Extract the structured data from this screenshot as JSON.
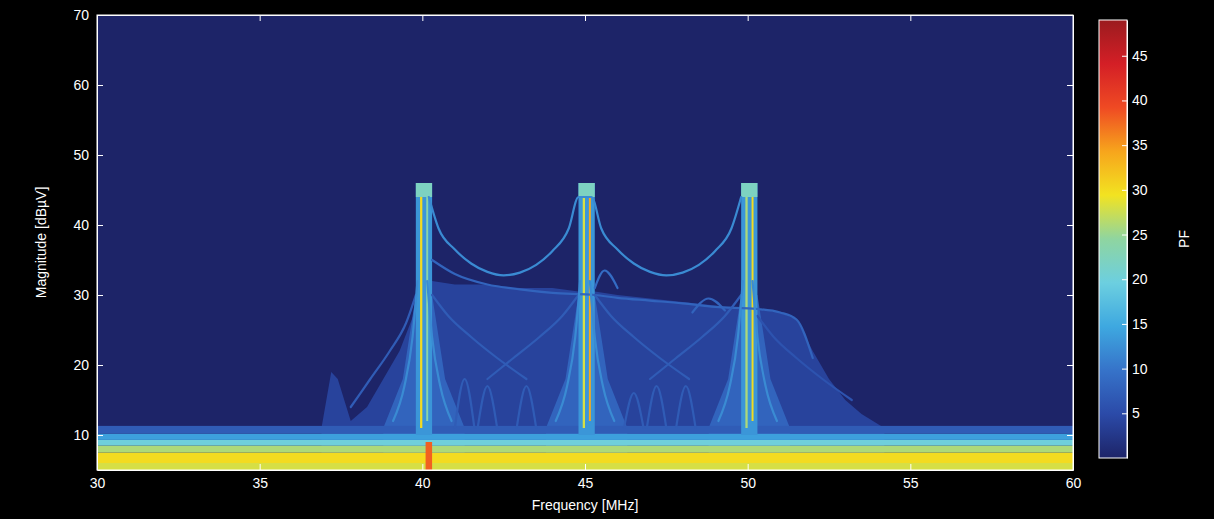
{
  "chart_data": {
    "type": "heatmap",
    "x_label": "Frequency [MHz]",
    "y_label": "Magnitude [dBµV]",
    "xlim": [
      30,
      60
    ],
    "ylim": [
      5,
      70
    ],
    "xticks": [
      30,
      35,
      40,
      45,
      50,
      55,
      60
    ],
    "yticks": [
      10,
      20,
      30,
      40,
      50,
      60,
      70
    ],
    "grid": false,
    "colorbar": {
      "label": "PF",
      "range": [
        0,
        49
      ],
      "ticks": [
        5,
        10,
        15,
        20,
        25,
        30,
        35,
        40,
        45
      ]
    },
    "areas": [
      {
        "x": [
          36.9,
          37.2,
          37.4,
          37.8,
          38.3,
          38.8,
          39.3,
          39.8,
          40.3,
          41,
          42,
          43,
          44,
          44.8,
          45.3,
          46,
          47,
          48,
          49,
          49.8,
          50.3,
          51,
          51.5,
          52,
          52.5,
          53,
          53.5,
          54.2
        ],
        "values": [
          11,
          19,
          18,
          12,
          14,
          18,
          22,
          28,
          32,
          31.5,
          31.5,
          31,
          31,
          30.5,
          30.5,
          30,
          29.5,
          29,
          28.5,
          28,
          28,
          27.5,
          26.5,
          22,
          18,
          15,
          13,
          11
        ],
        "pf": 4
      },
      {
        "x": [
          38.8,
          39.4,
          39.8,
          40.3,
          40.7,
          41.3
        ],
        "values": [
          11,
          18,
          30,
          30,
          18,
          11
        ],
        "pf": 8
      },
      {
        "x": [
          43.8,
          44.4,
          44.8,
          45.3,
          45.7,
          46.3
        ],
        "values": [
          11,
          18,
          30,
          30,
          18,
          11
        ],
        "pf": 8
      },
      {
        "x": [
          48.8,
          49.4,
          49.8,
          50.3,
          50.7,
          51.3
        ],
        "values": [
          11,
          18,
          30,
          30,
          18,
          11
        ],
        "pf": 8
      }
    ],
    "cells": [
      {
        "x": [
          30,
          60
        ],
        "y": [
          5,
          6
        ],
        "value": 28
      },
      {
        "x": [
          30,
          60
        ],
        "y": [
          6,
          7.5
        ],
        "value": 30
      },
      {
        "x": [
          30,
          60
        ],
        "y": [
          7.5,
          8.5
        ],
        "value": 26
      },
      {
        "x": [
          30,
          60
        ],
        "y": [
          8.5,
          9.3
        ],
        "value": 20
      },
      {
        "x": [
          30,
          60
        ],
        "y": [
          9.3,
          10.2
        ],
        "value": 14
      },
      {
        "x": [
          30,
          60
        ],
        "y": [
          10.2,
          11.3
        ],
        "value": 7
      },
      {
        "x": [
          39.8,
          40.3
        ],
        "y": [
          10,
          46
        ],
        "value": 13
      },
      {
        "x": [
          39.93,
          40.0
        ],
        "y": [
          11,
          45
        ],
        "value": 30
      },
      {
        "x": [
          40.12,
          40.18
        ],
        "y": [
          12,
          46
        ],
        "value": 24
      },
      {
        "x": [
          39.8,
          40.3
        ],
        "y": [
          44,
          46
        ],
        "value": 22
      },
      {
        "x": [
          40.1,
          40.3
        ],
        "y": [
          5,
          9
        ],
        "value": 38
      },
      {
        "x": [
          44.8,
          45.3
        ],
        "y": [
          10,
          46
        ],
        "value": 13
      },
      {
        "x": [
          44.93,
          45.0
        ],
        "y": [
          11,
          45
        ],
        "value": 28
      },
      {
        "x": [
          45.12,
          45.18
        ],
        "y": [
          12,
          46
        ],
        "value": 34
      },
      {
        "x": [
          44.8,
          45.3
        ],
        "y": [
          44,
          46
        ],
        "value": 22
      },
      {
        "x": [
          49.8,
          50.3
        ],
        "y": [
          10,
          46
        ],
        "value": 13
      },
      {
        "x": [
          49.93,
          50.0
        ],
        "y": [
          11,
          45
        ],
        "value": 26
      },
      {
        "x": [
          50.12,
          50.18
        ],
        "y": [
          12,
          46
        ],
        "value": 30
      },
      {
        "x": [
          49.8,
          50.3
        ],
        "y": [
          44,
          46
        ],
        "value": 22
      }
    ],
    "traces": [
      {
        "x": [
          40.2,
          40.5,
          41,
          41.5,
          42,
          42.5,
          43,
          43.5,
          44,
          44.5,
          44.8,
          45.2,
          45.5,
          46,
          46.5,
          47,
          47.5,
          48,
          48.5,
          49,
          49.5,
          49.8
        ],
        "values": [
          44,
          39.5,
          36.5,
          34.5,
          33.3,
          32.8,
          33.2,
          34.3,
          36.3,
          39.5,
          44,
          44,
          39.5,
          36.5,
          34.5,
          33.3,
          32.8,
          33.2,
          34.3,
          36.3,
          39.5,
          44
        ],
        "pf": 12
      },
      {
        "x": [
          40.3,
          41,
          42,
          43,
          44,
          45.3,
          46,
          47,
          48,
          49,
          50.3,
          51,
          51.5,
          52
        ],
        "values": [
          35,
          33,
          31.5,
          30.8,
          30.3,
          30,
          29.6,
          29.2,
          28.8,
          28.3,
          28,
          27.5,
          26.5,
          21
        ],
        "pf": 8
      },
      {
        "x": [
          37.8,
          38.4,
          39,
          39.5,
          39.8
        ],
        "values": [
          14,
          18,
          22,
          26,
          30
        ],
        "pf": 7
      },
      {
        "x": [
          45.3,
          45.6,
          46.0
        ],
        "values": [
          31,
          33.5,
          31
        ],
        "pf": 9
      },
      {
        "x": [
          48.3,
          48.8,
          49.3
        ],
        "values": [
          27.5,
          29.5,
          27.8
        ],
        "pf": 8
      },
      {
        "x": [
          40.3,
          40.8,
          41.5,
          42.3,
          43.2
        ],
        "values": [
          30,
          27,
          24,
          21,
          18
        ],
        "pf": 7
      },
      {
        "x": [
          45.3,
          45.8,
          46.5,
          47.3,
          48.2
        ],
        "values": [
          30,
          27,
          24,
          21,
          18
        ],
        "pf": 7
      },
      {
        "x": [
          50.3,
          50.8,
          51.5,
          52.3,
          53.2
        ],
        "values": [
          27,
          24,
          21,
          18,
          15
        ],
        "pf": 6
      },
      {
        "x": [
          42,
          42.8,
          43.6,
          44.3,
          44.8
        ],
        "values": [
          18,
          21,
          24,
          27,
          30
        ],
        "pf": 7
      },
      {
        "x": [
          47,
          47.8,
          48.6,
          49.3,
          49.8
        ],
        "values": [
          18,
          21,
          24,
          27,
          30
        ],
        "pf": 7
      },
      {
        "x": [
          41.0,
          41.3,
          41.6
        ],
        "values": [
          11,
          18,
          11
        ],
        "pf": 7
      },
      {
        "x": [
          41.7,
          42.0,
          42.3
        ],
        "values": [
          11,
          17,
          11
        ],
        "pf": 7
      },
      {
        "x": [
          42.9,
          43.2,
          43.5
        ],
        "values": [
          11,
          17,
          11
        ],
        "pf": 7
      },
      {
        "x": [
          46.2,
          46.5,
          46.8
        ],
        "values": [
          11,
          16,
          11
        ],
        "pf": 7
      },
      {
        "x": [
          46.9,
          47.2,
          47.5
        ],
        "values": [
          11,
          17,
          11
        ],
        "pf": 7
      },
      {
        "x": [
          47.8,
          48.1,
          48.4
        ],
        "values": [
          11,
          17,
          11
        ],
        "pf": 7
      },
      {
        "x": [
          39.1,
          39.45,
          39.7,
          39.85
        ],
        "values": [
          12,
          17,
          24,
          32
        ],
        "pf": 12
      },
      {
        "x": [
          40.15,
          40.3,
          40.55,
          40.9
        ],
        "values": [
          32,
          24,
          17,
          12
        ],
        "pf": 12
      },
      {
        "x": [
          44.1,
          44.45,
          44.7,
          44.85
        ],
        "values": [
          12,
          17,
          24,
          32
        ],
        "pf": 12
      },
      {
        "x": [
          45.15,
          45.3,
          45.55,
          45.9
        ],
        "values": [
          32,
          24,
          17,
          12
        ],
        "pf": 12
      },
      {
        "x": [
          49.1,
          49.45,
          49.7,
          49.85
        ],
        "values": [
          12,
          17,
          24,
          32
        ],
        "pf": 12
      },
      {
        "x": [
          50.15,
          50.3,
          50.55,
          50.9
        ],
        "values": [
          32,
          24,
          17,
          12
        ],
        "pf": 12
      }
    ]
  }
}
